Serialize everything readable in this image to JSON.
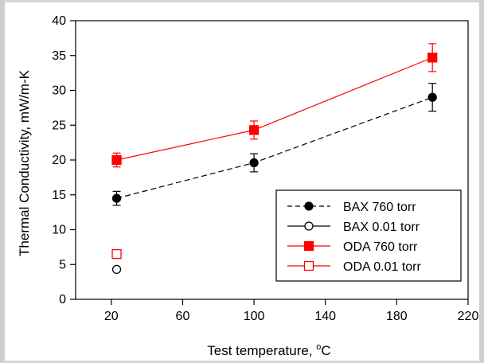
{
  "chart_data": {
    "type": "line",
    "xlabel": "Test temperature, °C",
    "xlabel_main": "Test temperature, ",
    "xlabel_sup": "o",
    "xlabel_unit": "C",
    "ylabel": "Thermal Conductivity, mW/m-K",
    "xlim": [
      0,
      220
    ],
    "ylim": [
      0,
      40
    ],
    "xticks": [
      20,
      60,
      100,
      140,
      180,
      220
    ],
    "yticks": [
      0,
      5,
      10,
      15,
      20,
      25,
      30,
      35,
      40
    ],
    "grid": false,
    "legend_position": "bottom-right",
    "series": [
      {
        "name": "BAX 760 torr",
        "color": "#000000",
        "marker": "circle-filled",
        "line": "dashed",
        "x": [
          23,
          100,
          200
        ],
        "y": [
          14.5,
          19.6,
          29.0
        ],
        "err": [
          1.0,
          1.3,
          2.0
        ]
      },
      {
        "name": "BAX 0.01 torr",
        "color": "#000000",
        "marker": "circle-open",
        "line": "solid",
        "x": [
          23
        ],
        "y": [
          4.3
        ],
        "err": [
          0.2
        ]
      },
      {
        "name": "ODA 760 torr",
        "color": "#ff0000",
        "marker": "square-filled",
        "line": "solid",
        "x": [
          23,
          100,
          200
        ],
        "y": [
          20.0,
          24.3,
          34.7
        ],
        "err": [
          1.0,
          1.3,
          2.0
        ]
      },
      {
        "name": "ODA 0.01 torr",
        "color": "#ff0000",
        "marker": "square-open",
        "line": "solid",
        "x": [
          23
        ],
        "y": [
          6.5
        ],
        "err": [
          0.3
        ]
      }
    ]
  }
}
